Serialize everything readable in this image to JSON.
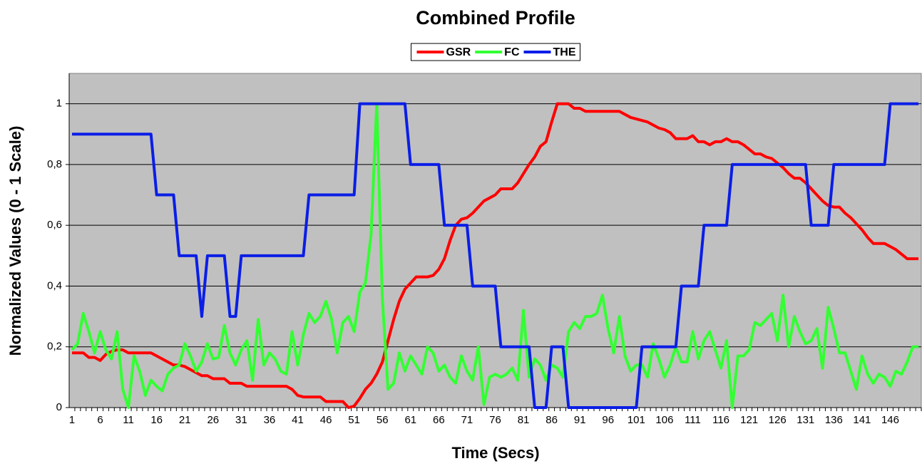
{
  "chart_data": {
    "type": "line",
    "title": "Combined Profile",
    "x_label": "Time (Secs)",
    "y_label": "Normalized Values (0 - 1 Scale)",
    "categories": [
      1,
      null,
      null,
      null,
      null,
      6,
      null,
      null,
      null,
      null,
      11,
      null,
      null,
      null,
      null,
      16,
      null,
      null,
      null,
      null,
      21,
      null,
      null,
      null,
      null,
      26,
      null,
      null,
      null,
      null,
      31,
      null,
      null,
      null,
      null,
      36,
      null,
      null,
      null,
      null,
      41,
      null,
      null,
      null,
      null,
      46,
      null,
      null,
      null,
      null,
      51,
      null,
      null,
      null,
      null,
      56,
      null,
      null,
      null,
      null,
      61,
      null,
      null,
      null,
      null,
      66,
      null,
      null,
      null,
      null,
      71,
      null,
      null,
      null,
      null,
      76,
      null,
      null,
      null,
      null,
      81,
      null,
      null,
      null,
      null,
      86,
      null,
      null,
      null,
      null,
      91,
      null,
      null,
      null,
      null,
      96,
      null,
      null,
      null,
      null,
      101,
      null,
      null,
      null,
      null,
      106,
      null,
      null,
      null,
      null,
      111,
      null,
      null,
      null,
      null,
      116,
      null,
      null,
      null,
      null,
      121,
      null,
      null,
      null,
      null,
      126,
      null,
      null,
      null,
      null,
      131,
      null,
      null,
      null,
      null,
      136,
      null,
      null,
      null,
      null,
      141,
      null,
      null,
      null,
      null,
      146,
      null,
      null,
      null,
      null,
      null
    ],
    "series": [
      {
        "name": "GSR",
        "color": "#ff0000",
        "values": [
          0.18,
          0.18,
          0.18,
          0.165,
          0.165,
          0.155,
          0.175,
          0.185,
          0.19,
          0.19,
          0.18,
          0.18,
          0.18,
          0.18,
          0.18,
          0.17,
          0.16,
          0.15,
          0.14,
          0.14,
          0.135,
          0.125,
          0.115,
          0.105,
          0.105,
          0.095,
          0.095,
          0.095,
          0.08,
          0.08,
          0.08,
          0.07,
          0.07,
          0.07,
          0.07,
          0.07,
          0.07,
          0.07,
          0.07,
          0.06,
          0.04,
          0.035,
          0.035,
          0.035,
          0.035,
          0.02,
          0.02,
          0.02,
          0.02,
          0,
          0.005,
          0.03,
          0.06,
          0.08,
          0.11,
          0.15,
          0.22,
          0.29,
          0.35,
          0.39,
          0.41,
          0.43,
          0.43,
          0.43,
          0.435,
          0.455,
          0.49,
          0.55,
          0.6,
          0.62,
          0.625,
          0.64,
          0.66,
          0.68,
          0.69,
          0.7,
          0.72,
          0.72,
          0.72,
          0.74,
          0.77,
          0.8,
          0.825,
          0.86,
          0.875,
          0.94,
          1,
          1,
          1,
          0.985,
          0.985,
          0.975,
          0.975,
          0.975,
          0.975,
          0.975,
          0.975,
          0.975,
          0.965,
          0.955,
          0.95,
          0.945,
          0.94,
          0.93,
          0.92,
          0.915,
          0.905,
          0.885,
          0.885,
          0.885,
          0.895,
          0.875,
          0.875,
          0.865,
          0.875,
          0.875,
          0.885,
          0.875,
          0.875,
          0.865,
          0.85,
          0.835,
          0.835,
          0.825,
          0.82,
          0.805,
          0.79,
          0.77,
          0.755,
          0.755,
          0.74,
          0.72,
          0.7,
          0.68,
          0.665,
          0.66,
          0.66,
          0.64,
          0.625,
          0.605,
          0.585,
          0.56,
          0.54,
          0.54,
          0.54,
          0.53,
          0.52,
          0.505,
          0.49,
          0.49,
          0.49
        ]
      },
      {
        "name": "FC",
        "color": "#33ff33",
        "values": [
          0.19,
          0.21,
          0.31,
          0.25,
          0.18,
          0.25,
          0.19,
          0.16,
          0.25,
          0.06,
          0,
          0.17,
          0.12,
          0.04,
          0.09,
          0.07,
          0.055,
          0.11,
          0.13,
          0.14,
          0.21,
          0.17,
          0.12,
          0.15,
          0.21,
          0.16,
          0.165,
          0.27,
          0.18,
          0.14,
          0.19,
          0.22,
          0.09,
          0.29,
          0.14,
          0.18,
          0.16,
          0.12,
          0.11,
          0.25,
          0.14,
          0.24,
          0.31,
          0.28,
          0.3,
          0.35,
          0.29,
          0.18,
          0.28,
          0.3,
          0.25,
          0.38,
          0.41,
          0.57,
          1,
          0.36,
          0.06,
          0.08,
          0.18,
          0.12,
          0.17,
          0.14,
          0.11,
          0.2,
          0.18,
          0.12,
          0.14,
          0.1,
          0.08,
          0.17,
          0.12,
          0.09,
          0.2,
          0.01,
          0.1,
          0.11,
          0.1,
          0.11,
          0.13,
          0.09,
          0.32,
          0.1,
          0.16,
          0.14,
          0.09,
          0.14,
          0.13,
          0.1,
          0.25,
          0.28,
          0.26,
          0.3,
          0.3,
          0.31,
          0.37,
          0.26,
          0.18,
          0.3,
          0.17,
          0.12,
          0.14,
          0.14,
          0.1,
          0.21,
          0.16,
          0.1,
          0.14,
          0.2,
          0.15,
          0.15,
          0.25,
          0.16,
          0.22,
          0.25,
          0.19,
          0.13,
          0.22,
          0,
          0.17,
          0.17,
          0.19,
          0.28,
          0.27,
          0.29,
          0.31,
          0.22,
          0.37,
          0.2,
          0.3,
          0.25,
          0.21,
          0.22,
          0.26,
          0.13,
          0.33,
          0.26,
          0.18,
          0.18,
          0.12,
          0.06,
          0.17,
          0.11,
          0.08,
          0.11,
          0.1,
          0.07,
          0.12,
          0.11,
          0.15,
          0.2,
          0.2
        ]
      },
      {
        "name": "THE",
        "color": "#0a1ee6",
        "values": [
          0.9,
          0.9,
          0.9,
          0.9,
          0.9,
          0.9,
          0.9,
          0.9,
          0.9,
          0.9,
          0.9,
          0.9,
          0.9,
          0.9,
          0.9,
          0.7,
          0.7,
          0.7,
          0.7,
          0.5,
          0.5,
          0.5,
          0.5,
          0.3,
          0.5,
          0.5,
          0.5,
          0.5,
          0.3,
          0.3,
          0.5,
          0.5,
          0.5,
          0.5,
          0.5,
          0.5,
          0.5,
          0.5,
          0.5,
          0.5,
          0.5,
          0.5,
          0.7,
          0.7,
          0.7,
          0.7,
          0.7,
          0.7,
          0.7,
          0.7,
          0.7,
          1,
          1,
          1,
          1,
          1,
          1,
          1,
          1,
          1,
          0.8,
          0.8,
          0.8,
          0.8,
          0.8,
          0.8,
          0.6,
          0.6,
          0.6,
          0.6,
          0.6,
          0.4,
          0.4,
          0.4,
          0.4,
          0.4,
          0.2,
          0.2,
          0.2,
          0.2,
          0.2,
          0.2,
          0,
          0,
          0,
          0.2,
          0.2,
          0.2,
          0,
          0,
          0,
          0,
          0,
          0,
          0,
          0,
          0,
          0,
          0,
          0,
          0,
          0.2,
          0.2,
          0.2,
          0.2,
          0.2,
          0.2,
          0.2,
          0.4,
          0.4,
          0.4,
          0.4,
          0.6,
          0.6,
          0.6,
          0.6,
          0.6,
          0.8,
          0.8,
          0.8,
          0.8,
          0.8,
          0.8,
          0.8,
          0.8,
          0.8,
          0.8,
          0.8,
          0.8,
          0.8,
          0.8,
          0.6,
          0.6,
          0.6,
          0.6,
          0.8,
          0.8,
          0.8,
          0.8,
          0.8,
          0.8,
          0.8,
          0.8,
          0.8,
          0.8,
          1,
          1,
          1,
          1,
          1,
          1
        ]
      }
    ],
    "ylim": [
      0,
      1.1
    ],
    "yticks": [
      0,
      {
        "value": 0.2,
        "label": "0,2"
      },
      {
        "value": 0.4,
        "label": "0,4"
      },
      {
        "value": 0.6,
        "label": "0,6"
      },
      {
        "value": 0.8,
        "label": "0,8"
      },
      1
    ],
    "grid": true,
    "legend": "top"
  }
}
